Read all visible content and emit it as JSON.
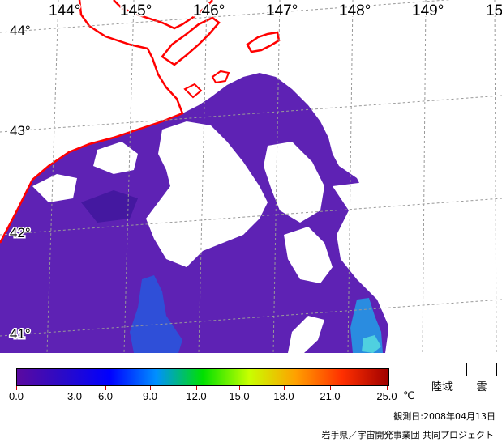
{
  "map": {
    "lon_labels": [
      "144°",
      "145°",
      "146°",
      "147°",
      "148°",
      "149°",
      "15"
    ],
    "lat_labels": [
      "44°",
      "43°",
      "42°",
      "41°"
    ],
    "coastline_color": "#ff0000",
    "grid_color": "#999999",
    "cloud_color": "#ffffff",
    "sea_color_low": "#5a1fb0"
  },
  "legend": {
    "ticks": [
      "0.0",
      "3.0",
      "6.0",
      "9.0",
      "12.0",
      "15.0",
      "18.0",
      "21.0",
      "25.0"
    ],
    "unit": "℃",
    "colors": [
      "#5a0aa0",
      "#2a0ac8",
      "#0000ff",
      "#0090ff",
      "#00e000",
      "#c8ff00",
      "#ffa000",
      "#ff3000",
      "#a00000"
    ],
    "land_label": "陸域",
    "cloud_label": "雲"
  },
  "observation_date": "観測日:2008年04月13日",
  "credit": "岩手県／宇宙開発事業団 共同プロジェクト"
}
